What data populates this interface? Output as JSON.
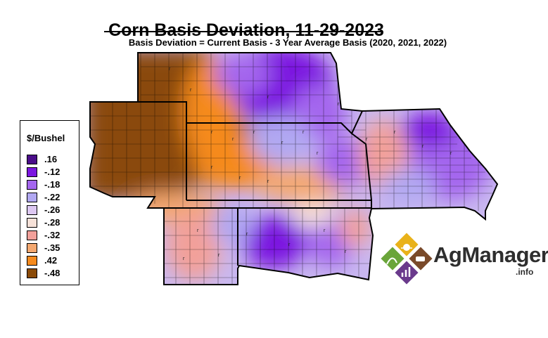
{
  "title": "Corn Basis Deviation, 11-29-2023",
  "subtitle": "Basis Deviation = Current Basis - 3 Year Average Basis (2020, 2021, 2022)",
  "legend": {
    "title": "$/Bushel",
    "items": [
      {
        "label": ".16",
        "color": "#4b0d8a"
      },
      {
        "label": "-.12",
        "color": "#7b16e0"
      },
      {
        "label": "-.18",
        "color": "#a466ee"
      },
      {
        "label": "-.22",
        "color": "#b1a8f2"
      },
      {
        "label": "-.26",
        "color": "#ddc8f2"
      },
      {
        "label": "-.28",
        "color": "#f6e1d8"
      },
      {
        "label": "-.32",
        "color": "#f2a09a"
      },
      {
        "label": "-.35",
        "color": "#f4a870"
      },
      {
        "label": ".42",
        "color": "#f58a1e"
      },
      {
        "label": "-.48",
        "color": "#8a4a08"
      }
    ]
  },
  "logo": {
    "text": "AgManager",
    "suffix": ".info",
    "colors": {
      "gold": "#e9b21a",
      "brown": "#7a4a2a",
      "green": "#6aa53a",
      "purple": "#6a3a8c"
    }
  }
}
